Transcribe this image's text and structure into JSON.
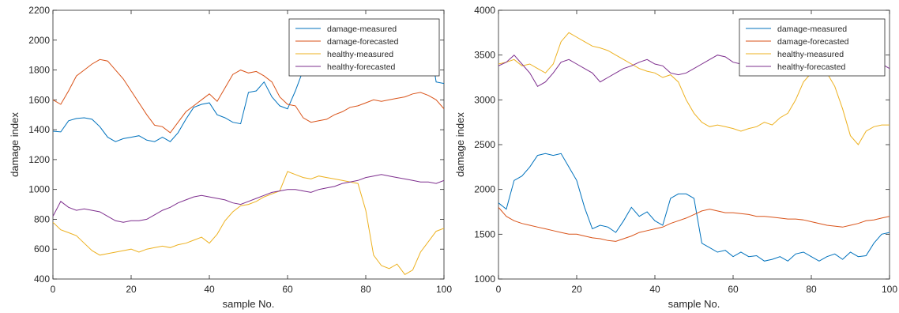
{
  "colors": {
    "damage_measured": "#0072BD",
    "damage_forecasted": "#D95319",
    "healthy_measured": "#EDB120",
    "healthy_forecasted": "#7E2F8E"
  },
  "chart_data": [
    {
      "type": "line",
      "title": "",
      "xlabel": "sample No.",
      "ylabel": "damage index",
      "xlim": [
        0,
        100
      ],
      "ylim": [
        400,
        2200
      ],
      "xticks": [
        0,
        20,
        40,
        60,
        80,
        100
      ],
      "xtick_labels": [
        "0",
        "20",
        "40",
        "60",
        "80",
        "100"
      ],
      "yticks": [
        400,
        600,
        800,
        1000,
        1200,
        1400,
        1600,
        1800,
        2000,
        2200
      ],
      "ytick_labels": [
        "400",
        "600",
        "800",
        "1000",
        "1200",
        "1400",
        "1600",
        "1800",
        "2000",
        "2200"
      ],
      "grid": false,
      "legend": "top-right",
      "x": [
        0,
        2,
        4,
        6,
        8,
        10,
        12,
        14,
        16,
        18,
        20,
        22,
        24,
        26,
        28,
        30,
        32,
        34,
        36,
        38,
        40,
        42,
        44,
        46,
        48,
        50,
        52,
        54,
        56,
        58,
        60,
        62,
        64,
        66,
        68,
        70,
        72,
        74,
        76,
        78,
        80,
        82,
        84,
        86,
        88,
        90,
        92,
        94,
        96,
        98,
        100
      ],
      "series": [
        {
          "name": "damage-measured",
          "color": "#0072BD",
          "values": [
            1390,
            1385,
            1460,
            1475,
            1480,
            1470,
            1420,
            1350,
            1320,
            1340,
            1350,
            1360,
            1330,
            1320,
            1350,
            1320,
            1380,
            1470,
            1550,
            1570,
            1580,
            1500,
            1480,
            1450,
            1440,
            1650,
            1660,
            1720,
            1620,
            1560,
            1540,
            1660,
            1800,
            1950,
            2140,
            2120,
            2100,
            2080,
            2120,
            2090,
            2060,
            2080,
            2100,
            2080,
            2110,
            2100,
            2120,
            2070,
            2050,
            1720,
            1710
          ]
        },
        {
          "name": "damage-forecasted",
          "color": "#D95319",
          "values": [
            1600,
            1570,
            1660,
            1760,
            1800,
            1840,
            1870,
            1860,
            1800,
            1740,
            1660,
            1580,
            1500,
            1430,
            1420,
            1380,
            1450,
            1520,
            1560,
            1600,
            1640,
            1590,
            1680,
            1770,
            1800,
            1780,
            1790,
            1760,
            1720,
            1620,
            1570,
            1560,
            1480,
            1450,
            1460,
            1470,
            1500,
            1520,
            1550,
            1560,
            1580,
            1600,
            1590,
            1600,
            1610,
            1620,
            1640,
            1650,
            1630,
            1600,
            1540
          ]
        },
        {
          "name": "healthy-measured",
          "color": "#EDB120",
          "values": [
            780,
            730,
            710,
            690,
            640,
            590,
            560,
            570,
            580,
            590,
            600,
            580,
            600,
            610,
            620,
            610,
            630,
            640,
            660,
            680,
            640,
            700,
            790,
            850,
            890,
            900,
            920,
            950,
            970,
            990,
            1120,
            1100,
            1080,
            1070,
            1090,
            1080,
            1070,
            1060,
            1050,
            1040,
            860,
            560,
            490,
            470,
            500,
            430,
            460,
            580,
            650,
            720,
            740
          ]
        },
        {
          "name": "healthy-forecasted",
          "color": "#7E2F8E",
          "values": [
            820,
            920,
            880,
            860,
            870,
            860,
            850,
            820,
            790,
            780,
            790,
            790,
            800,
            830,
            860,
            880,
            910,
            930,
            950,
            960,
            950,
            940,
            930,
            910,
            900,
            920,
            940,
            960,
            980,
            990,
            1000,
            1000,
            990,
            980,
            1000,
            1010,
            1020,
            1040,
            1050,
            1060,
            1080,
            1090,
            1100,
            1090,
            1080,
            1070,
            1060,
            1050,
            1050,
            1040,
            1060
          ]
        }
      ]
    },
    {
      "type": "line",
      "title": "",
      "xlabel": "sample No.",
      "ylabel": "damage index",
      "xlim": [
        0,
        100
      ],
      "ylim": [
        1000,
        4000
      ],
      "xticks": [
        0,
        20,
        40,
        60,
        80,
        100
      ],
      "xtick_labels": [
        "0",
        "20",
        "40",
        "60",
        "80",
        "100"
      ],
      "yticks": [
        1000,
        1500,
        2000,
        2500,
        3000,
        3500,
        4000
      ],
      "ytick_labels": [
        "1000",
        "1500",
        "2000",
        "2500",
        "3000",
        "3500",
        "4000"
      ],
      "grid": false,
      "legend": "top-right",
      "x": [
        0,
        2,
        4,
        6,
        8,
        10,
        12,
        14,
        16,
        18,
        20,
        22,
        24,
        26,
        28,
        30,
        32,
        34,
        36,
        38,
        40,
        42,
        44,
        46,
        48,
        50,
        52,
        54,
        56,
        58,
        60,
        62,
        64,
        66,
        68,
        70,
        72,
        74,
        76,
        78,
        80,
        82,
        84,
        86,
        88,
        90,
        92,
        94,
        96,
        98,
        100
      ],
      "series": [
        {
          "name": "damage-measured",
          "color": "#0072BD",
          "values": [
            1850,
            1780,
            2100,
            2150,
            2250,
            2380,
            2400,
            2380,
            2400,
            2250,
            2100,
            1800,
            1560,
            1600,
            1580,
            1520,
            1650,
            1800,
            1700,
            1750,
            1650,
            1600,
            1900,
            1950,
            1950,
            1900,
            1400,
            1350,
            1300,
            1320,
            1250,
            1300,
            1250,
            1260,
            1200,
            1220,
            1250,
            1200,
            1280,
            1300,
            1250,
            1200,
            1250,
            1280,
            1220,
            1300,
            1250,
            1260,
            1400,
            1500,
            1520
          ]
        },
        {
          "name": "damage-forecasted",
          "color": "#D95319",
          "values": [
            1800,
            1700,
            1650,
            1620,
            1600,
            1580,
            1560,
            1540,
            1520,
            1500,
            1500,
            1480,
            1460,
            1450,
            1430,
            1420,
            1450,
            1480,
            1520,
            1540,
            1560,
            1580,
            1620,
            1650,
            1680,
            1720,
            1760,
            1780,
            1760,
            1740,
            1740,
            1730,
            1720,
            1700,
            1700,
            1690,
            1680,
            1670,
            1670,
            1660,
            1640,
            1620,
            1600,
            1590,
            1580,
            1600,
            1620,
            1650,
            1660,
            1680,
            1700
          ]
        },
        {
          "name": "healthy-measured",
          "color": "#EDB120",
          "values": [
            3400,
            3420,
            3450,
            3380,
            3400,
            3350,
            3300,
            3400,
            3650,
            3750,
            3700,
            3650,
            3600,
            3580,
            3550,
            3500,
            3450,
            3400,
            3350,
            3320,
            3300,
            3250,
            3280,
            3200,
            3000,
            2850,
            2750,
            2700,
            2720,
            2700,
            2680,
            2650,
            2680,
            2700,
            2750,
            2720,
            2800,
            2850,
            3000,
            3200,
            3300,
            3350,
            3300,
            3150,
            2900,
            2600,
            2500,
            2650,
            2700,
            2720,
            2720
          ]
        },
        {
          "name": "healthy-forecasted",
          "color": "#7E2F8E",
          "values": [
            3380,
            3420,
            3500,
            3400,
            3300,
            3150,
            3200,
            3300,
            3420,
            3450,
            3400,
            3350,
            3300,
            3200,
            3250,
            3300,
            3350,
            3380,
            3420,
            3450,
            3400,
            3380,
            3300,
            3280,
            3300,
            3350,
            3400,
            3450,
            3500,
            3480,
            3420,
            3400,
            3380,
            3350,
            3400,
            3420,
            3450,
            3480,
            3450,
            3400,
            3380,
            3350,
            3300,
            3320,
            3380,
            3420,
            3400,
            3380,
            3350,
            3400,
            3350
          ]
        }
      ]
    }
  ]
}
